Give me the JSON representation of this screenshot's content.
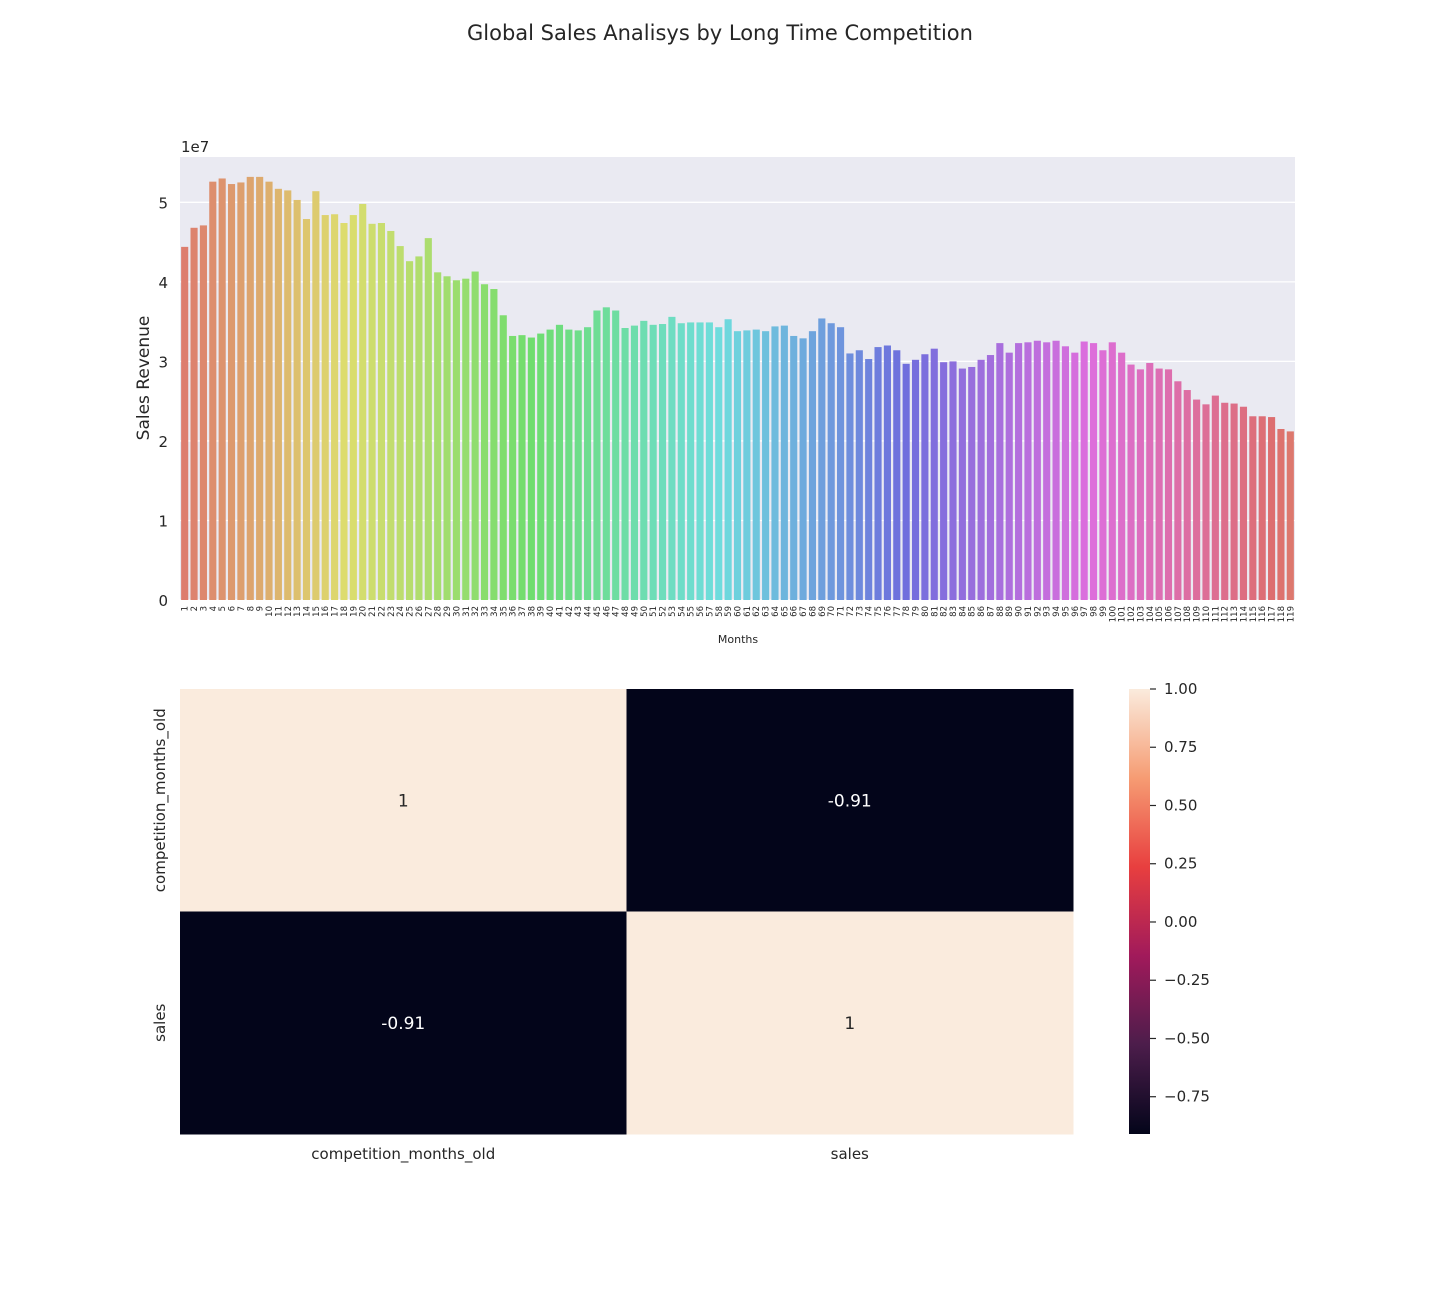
{
  "title": "Global Sales Analisys by Long Time Competition",
  "chart_data": [
    {
      "type": "bar",
      "xlabel": "Months",
      "ylabel": "Sales Revenue",
      "y_scale_label": "1e7",
      "ylim": [
        0,
        5.57
      ],
      "yticks": [
        0,
        1,
        2,
        3,
        4,
        5
      ],
      "grid": true,
      "categories": [
        "1",
        "2",
        "3",
        "4",
        "5",
        "6",
        "7",
        "8",
        "9",
        "10",
        "11",
        "12",
        "13",
        "14",
        "15",
        "16",
        "17",
        "18",
        "19",
        "20",
        "21",
        "22",
        "23",
        "24",
        "25",
        "26",
        "27",
        "28",
        "29",
        "30",
        "31",
        "32",
        "33",
        "34",
        "35",
        "36",
        "37",
        "38",
        "39",
        "40",
        "41",
        "42",
        "43",
        "44",
        "45",
        "46",
        "47",
        "48",
        "49",
        "50",
        "51",
        "52",
        "53",
        "54",
        "55",
        "56",
        "57",
        "58",
        "59",
        "60",
        "61",
        "62",
        "63",
        "64",
        "65",
        "66",
        "67",
        "68",
        "69",
        "70",
        "71",
        "72",
        "73",
        "74",
        "75",
        "76",
        "77",
        "78",
        "79",
        "80",
        "81",
        "82",
        "83",
        "84",
        "85",
        "86",
        "87",
        "88",
        "89",
        "90",
        "91",
        "92",
        "93",
        "94",
        "95",
        "96",
        "97",
        "98",
        "99",
        "100",
        "101",
        "102",
        "103",
        "104",
        "105",
        "106",
        "107",
        "108",
        "109",
        "110",
        "111",
        "112",
        "113",
        "114",
        "115",
        "116",
        "117",
        "118",
        "119"
      ],
      "values": [
        4.44,
        4.68,
        4.71,
        5.26,
        5.3,
        5.23,
        5.25,
        5.32,
        5.32,
        5.26,
        5.17,
        5.15,
        5.03,
        4.79,
        5.14,
        4.84,
        4.85,
        4.74,
        4.84,
        4.98,
        4.73,
        4.74,
        4.64,
        4.45,
        4.26,
        4.32,
        4.55,
        4.12,
        4.07,
        4.02,
        4.04,
        4.13,
        3.97,
        3.91,
        3.58,
        3.32,
        3.33,
        3.3,
        3.35,
        3.4,
        3.46,
        3.4,
        3.39,
        3.43,
        3.64,
        3.68,
        3.64,
        3.42,
        3.45,
        3.51,
        3.46,
        3.47,
        3.56,
        3.48,
        3.49,
        3.49,
        3.49,
        3.43,
        3.53,
        3.38,
        3.39,
        3.4,
        3.38,
        3.44,
        3.45,
        3.32,
        3.29,
        3.38,
        3.54,
        3.48,
        3.43,
        3.1,
        3.14,
        3.03,
        3.18,
        3.2,
        3.14,
        2.97,
        3.02,
        3.09,
        3.16,
        2.99,
        3.0,
        2.91,
        2.93,
        3.02,
        3.08,
        3.23,
        3.11,
        3.23,
        3.24,
        3.26,
        3.24,
        3.26,
        3.19,
        3.11,
        3.25,
        3.23,
        3.14,
        3.24,
        3.11,
        2.96,
        2.9,
        2.98,
        2.91,
        2.9,
        2.75,
        2.64,
        2.52,
        2.46,
        2.57,
        2.48,
        2.47,
        2.43,
        2.31,
        2.31,
        2.3,
        2.15,
        2.12
      ]
    },
    {
      "type": "heatmap",
      "rows": [
        "competition_months_old",
        "sales"
      ],
      "columns": [
        "competition_months_old",
        "sales"
      ],
      "values": [
        [
          1,
          -0.91
        ],
        [
          -0.91,
          1
        ]
      ],
      "annotations": [
        [
          "1",
          "-0.91"
        ],
        [
          "-0.91",
          "1"
        ]
      ],
      "colorbar": {
        "range": [
          -0.91,
          1.0
        ],
        "ticks": [
          "1.00",
          "0.75",
          "0.50",
          "0.25",
          "0.00",
          "−0.25",
          "−0.50",
          "−0.75"
        ],
        "tick_values": [
          1.0,
          0.75,
          0.5,
          0.25,
          0.0,
          -0.25,
          -0.5,
          -0.75
        ],
        "colors": [
          "#03051a",
          "#4c1d4b",
          "#a11a5b",
          "#e83f3f",
          "#f69c73",
          "#faebdd"
        ]
      }
    }
  ]
}
